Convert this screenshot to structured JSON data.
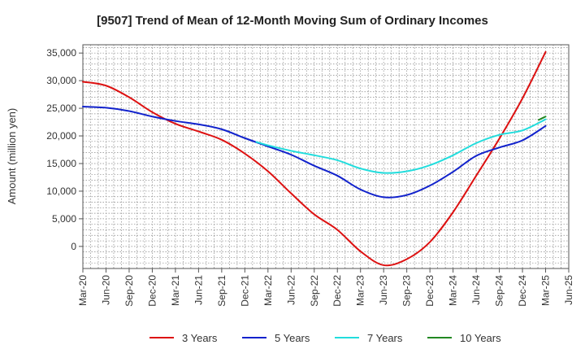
{
  "chart_data": {
    "type": "line",
    "title": "[9507]  Trend of Mean of 12-Month Moving Sum of Ordinary Incomes",
    "xlabel": "",
    "ylabel": "Amount (million yen)",
    "ylim": [
      -4000,
      36500
    ],
    "yticks": [
      0,
      5000,
      10000,
      15000,
      20000,
      25000,
      30000,
      35000
    ],
    "ytick_labels": [
      "0",
      "5,000",
      "10,000",
      "15,000",
      "20,000",
      "25,000",
      "30,000",
      "35,000"
    ],
    "xticks": [
      "Mar-20",
      "Jun-20",
      "Sep-20",
      "Dec-20",
      "Mar-21",
      "Jun-21",
      "Sep-21",
      "Dec-21",
      "Mar-22",
      "Jun-22",
      "Sep-22",
      "Dec-22",
      "Mar-23",
      "Jun-23",
      "Sep-23",
      "Dec-23",
      "Mar-24",
      "Jun-24",
      "Sep-24",
      "Dec-24",
      "Mar-25",
      "Jun-25"
    ],
    "grid": true,
    "legend_position": "bottom",
    "series": [
      {
        "name": "3 Years",
        "color": "#dd1111",
        "values": [
          [
            0,
            29800
          ],
          [
            1,
            29100
          ],
          [
            2,
            27000
          ],
          [
            3,
            24300
          ],
          [
            4,
            22200
          ],
          [
            5,
            20800
          ],
          [
            6,
            19300
          ],
          [
            7,
            16800
          ],
          [
            8,
            13600
          ],
          [
            9,
            9600
          ],
          [
            10,
            5800
          ],
          [
            11,
            3000
          ],
          [
            12,
            -900
          ],
          [
            13,
            -3400
          ],
          [
            14,
            -2300
          ],
          [
            15,
            800
          ],
          [
            16,
            6200
          ],
          [
            17,
            12800
          ],
          [
            18,
            19500
          ],
          [
            19,
            26800
          ],
          [
            20,
            35200
          ]
        ]
      },
      {
        "name": "5 Years",
        "color": "#1122cc",
        "values": [
          [
            0,
            25300
          ],
          [
            1,
            25100
          ],
          [
            2,
            24500
          ],
          [
            3,
            23500
          ],
          [
            4,
            22700
          ],
          [
            5,
            22100
          ],
          [
            6,
            21200
          ],
          [
            7,
            19600
          ],
          [
            8,
            18100
          ],
          [
            9,
            16600
          ],
          [
            10,
            14600
          ],
          [
            11,
            12800
          ],
          [
            12,
            10300
          ],
          [
            13,
            8900
          ],
          [
            14,
            9300
          ],
          [
            15,
            11000
          ],
          [
            16,
            13500
          ],
          [
            17,
            16400
          ],
          [
            18,
            17900
          ],
          [
            19,
            19200
          ],
          [
            20,
            21800
          ]
        ]
      },
      {
        "name": "7 Years",
        "color": "#22dddd",
        "values": [
          [
            7.5,
            18900
          ],
          [
            8,
            18300
          ],
          [
            9,
            17300
          ],
          [
            10,
            16500
          ],
          [
            11,
            15600
          ],
          [
            12,
            14100
          ],
          [
            13,
            13300
          ],
          [
            14,
            13600
          ],
          [
            15,
            14700
          ],
          [
            16,
            16500
          ],
          [
            17,
            18700
          ],
          [
            18,
            20200
          ],
          [
            19,
            21000
          ],
          [
            20,
            23000
          ]
        ]
      },
      {
        "name": "10 Years",
        "color": "#228822",
        "values": [
          [
            19.7,
            22900
          ],
          [
            20,
            23500
          ]
        ]
      }
    ]
  }
}
